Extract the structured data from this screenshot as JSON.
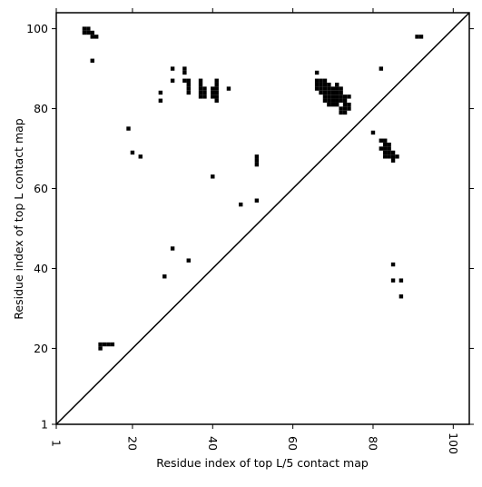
{
  "chart_data": {
    "type": "heatmap",
    "xlabel": "Residue index of top L/5 contact map",
    "ylabel": "Residue index of top L contact map",
    "xlim": [
      1,
      104
    ],
    "ylim": [
      1,
      104
    ],
    "x_ticks": [
      1,
      20,
      40,
      60,
      80,
      100
    ],
    "y_ticks": [
      1,
      20,
      40,
      60,
      80,
      100
    ],
    "x_tick_rotation": "vertical",
    "diagonal_line": true,
    "grid": false,
    "legend": "none",
    "colors": {
      "contact": "#000000",
      "background": "#ffffff",
      "frame": "#000000"
    },
    "contacts": [
      [
        8,
        100
      ],
      [
        9,
        100
      ],
      [
        8,
        99
      ],
      [
        9,
        99
      ],
      [
        10,
        99
      ],
      [
        10,
        98
      ],
      [
        11,
        98
      ],
      [
        10,
        92
      ],
      [
        30,
        90
      ],
      [
        33,
        90
      ],
      [
        33,
        89
      ],
      [
        30,
        87
      ],
      [
        33,
        87
      ],
      [
        34,
        87
      ],
      [
        27,
        84
      ],
      [
        27,
        82
      ],
      [
        34,
        86
      ],
      [
        34,
        85
      ],
      [
        34,
        84
      ],
      [
        37,
        87
      ],
      [
        37,
        86
      ],
      [
        37,
        85
      ],
      [
        37,
        84
      ],
      [
        37,
        83
      ],
      [
        38,
        85
      ],
      [
        38,
        84
      ],
      [
        38,
        83
      ],
      [
        40,
        85
      ],
      [
        40,
        84
      ],
      [
        40,
        83
      ],
      [
        41,
        87
      ],
      [
        41,
        86
      ],
      [
        41,
        85
      ],
      [
        41,
        84
      ],
      [
        41,
        83
      ],
      [
        41,
        82
      ],
      [
        44,
        85
      ],
      [
        19,
        75
      ],
      [
        20,
        69
      ],
      [
        22,
        68
      ],
      [
        40,
        63
      ],
      [
        47,
        56
      ],
      [
        51,
        68
      ],
      [
        51,
        67
      ],
      [
        51,
        66
      ],
      [
        51,
        57
      ],
      [
        30,
        45
      ],
      [
        34,
        42
      ],
      [
        28,
        38
      ],
      [
        12,
        21
      ],
      [
        13,
        21
      ],
      [
        14,
        21
      ],
      [
        15,
        21
      ],
      [
        12,
        20
      ],
      [
        66,
        89
      ],
      [
        66,
        87
      ],
      [
        67,
        87
      ],
      [
        68,
        87
      ],
      [
        66,
        86
      ],
      [
        67,
        86
      ],
      [
        68,
        86
      ],
      [
        69,
        86
      ],
      [
        71,
        86
      ],
      [
        66,
        85
      ],
      [
        67,
        85
      ],
      [
        68,
        85
      ],
      [
        69,
        85
      ],
      [
        70,
        85
      ],
      [
        71,
        85
      ],
      [
        72,
        85
      ],
      [
        67,
        84
      ],
      [
        68,
        84
      ],
      [
        69,
        84
      ],
      [
        70,
        84
      ],
      [
        71,
        84
      ],
      [
        72,
        84
      ],
      [
        68,
        83
      ],
      [
        69,
        83
      ],
      [
        70,
        83
      ],
      [
        71,
        83
      ],
      [
        72,
        83
      ],
      [
        73,
        83
      ],
      [
        74,
        83
      ],
      [
        68,
        82
      ],
      [
        69,
        82
      ],
      [
        70,
        82
      ],
      [
        71,
        82
      ],
      [
        72,
        82
      ],
      [
        73,
        82
      ],
      [
        69,
        81
      ],
      [
        70,
        81
      ],
      [
        71,
        81
      ],
      [
        73,
        81
      ],
      [
        74,
        81
      ],
      [
        72,
        80
      ],
      [
        73,
        80
      ],
      [
        74,
        80
      ],
      [
        72,
        79
      ],
      [
        73,
        79
      ],
      [
        82,
        90
      ],
      [
        80,
        74
      ],
      [
        82,
        72
      ],
      [
        83,
        72
      ],
      [
        83,
        71
      ],
      [
        84,
        71
      ],
      [
        82,
        70
      ],
      [
        83,
        70
      ],
      [
        84,
        70
      ],
      [
        83,
        69
      ],
      [
        84,
        69
      ],
      [
        85,
        69
      ],
      [
        83,
        68
      ],
      [
        84,
        68
      ],
      [
        85,
        68
      ],
      [
        86,
        68
      ],
      [
        85,
        67
      ],
      [
        85,
        41
      ],
      [
        85,
        37
      ],
      [
        87,
        37
      ],
      [
        87,
        33
      ],
      [
        91,
        98
      ],
      [
        92,
        98
      ]
    ]
  }
}
